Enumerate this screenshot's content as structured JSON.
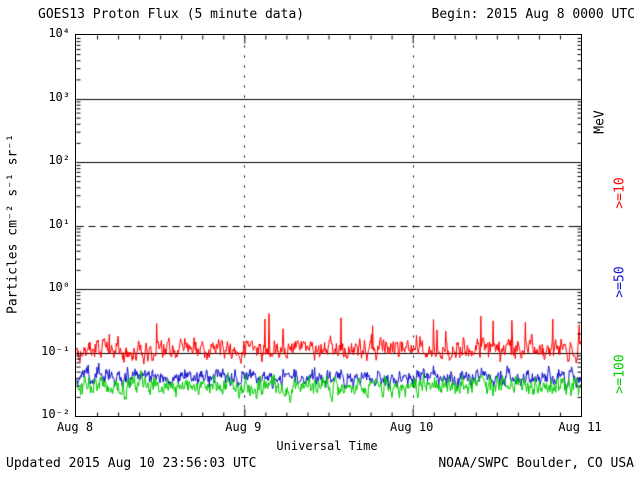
{
  "header": {
    "title": "GOES13 Proton Flux (5 minute data)",
    "begin": "Begin: 2015 Aug 8 0000 UTC"
  },
  "footer": {
    "updated": "Updated 2015 Aug 10 23:56:03 UTC",
    "source": "NOAA/SWPC Boulder, CO USA"
  },
  "chart_data": {
    "type": "line",
    "title": "GOES13 Proton Flux (5 minute data)",
    "xlabel": "Universal Time",
    "ylabel": "Particles cm⁻² s⁻¹ sr⁻¹",
    "right_axis_label": "MeV",
    "x_ticks": [
      "Aug 8",
      "Aug 9",
      "Aug 10",
      "Aug 11"
    ],
    "y_tick_labels": [
      "10⁴",
      "10³",
      "10²",
      "10¹",
      "10⁰",
      "10⁻¹",
      "10⁻²"
    ],
    "y_exponents": [
      4,
      3,
      2,
      1,
      0,
      -1,
      -2
    ],
    "ylim_log10": [
      -2,
      4
    ],
    "x_days": 3,
    "points_per_day": 288,
    "grid": {
      "horizontal_solid_exp": [
        3,
        2,
        0,
        -1
      ],
      "horizontal_dashed_exp": [
        1
      ],
      "vertical_at_days": [
        1,
        2
      ]
    },
    "series": [
      {
        "name": ">=10",
        "unit": "MeV",
        "color": "#ff0000",
        "baseline_flux": 0.115,
        "log_amp": 0.22,
        "spike_prob": 0.02,
        "spike_amp": 0.55,
        "seed": 101
      },
      {
        "name": ">=50",
        "unit": "MeV",
        "color": "#1111cc",
        "baseline_flux": 0.042,
        "log_amp": 0.18,
        "spike_prob": 0.0,
        "spike_amp": 0.0,
        "seed": 202
      },
      {
        "name": ">=100",
        "unit": "MeV",
        "color": "#00cc00",
        "baseline_flux": 0.03,
        "log_amp": 0.2,
        "spike_prob": 0.0,
        "spike_amp": 0.0,
        "seed": 303
      }
    ]
  }
}
